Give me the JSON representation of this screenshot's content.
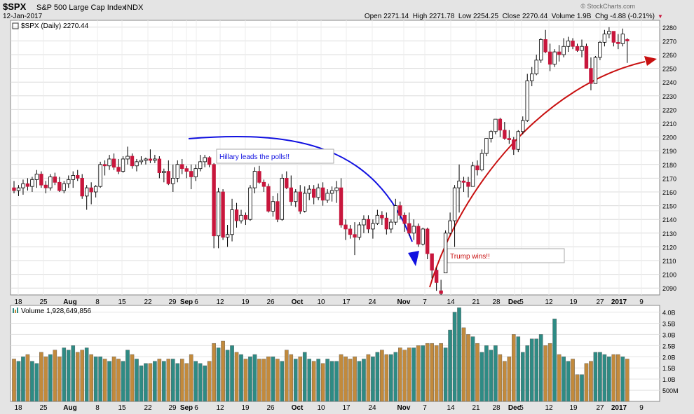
{
  "header": {
    "symbol": "$SPX",
    "name": "S&P 500 Large Cap Index",
    "exchange": "INDX",
    "date": "12-Jan-2017",
    "ohlc_line": "Open 2271.14  High 2271.78  Low 2254.25  Close 2270.44  Volume 1.9B  Chg -4.88 (-0.21%)",
    "chg_arrow": "▼",
    "copyright": "© StockCharts.com"
  },
  "price_panel": {
    "legend": "$SPX (Daily) 2270.44",
    "y_ticks": [
      2090,
      2100,
      2110,
      2120,
      2130,
      2140,
      2150,
      2160,
      2170,
      2180,
      2190,
      2200,
      2210,
      2220,
      2230,
      2240,
      2250,
      2260,
      2270,
      2280
    ]
  },
  "volume_panel": {
    "legend": "Volume 1,928,649,856",
    "y_ticks": [
      "500M",
      "1.0B",
      "1.5B",
      "2.0B",
      "2.5B",
      "3.0B",
      "3.5B",
      "4.0B"
    ]
  },
  "x_labels": [
    "18",
    "25",
    "Aug",
    "8",
    "15",
    "22",
    "29",
    "Sep",
    "6",
    "12",
    "19",
    "26",
    "Oct",
    "10",
    "17",
    "24",
    "Nov",
    "7",
    "14",
    "21",
    "28",
    "Dec",
    "5",
    "12",
    "19",
    "27",
    "2017",
    "9"
  ],
  "annotations": {
    "hillary": "Hillary leads the polls!!",
    "trump": "Trump wins!!"
  },
  "colors": {
    "up": "#ffffff",
    "down": "#c8163c",
    "volume_up": "#2e8b84",
    "volume_down": "#c28a3c",
    "blue_arrow": "#1010e0",
    "red_arrow": "#c81010",
    "plot_bg": "#ffffff",
    "page_bg": "#e4e4e4"
  },
  "chart_data": {
    "type": "candlestick",
    "title": "$SPX S&P 500 Large Cap Index",
    "x_range": [
      "2016-07-14",
      "2017-01-12"
    ],
    "ylim": [
      2085,
      2285
    ],
    "volume_ylim_billions": [
      0,
      4.3
    ],
    "candles": [
      {
        "o": 2163,
        "h": 2168,
        "l": 2159,
        "c": 2161,
        "v": 1.9
      },
      {
        "o": 2161,
        "h": 2165,
        "l": 2157,
        "c": 2163,
        "v": 1.8
      },
      {
        "o": 2163,
        "h": 2169,
        "l": 2158,
        "c": 2166,
        "v": 2.0
      },
      {
        "o": 2166,
        "h": 2170,
        "l": 2161,
        "c": 2164,
        "v": 2.1
      },
      {
        "o": 2164,
        "h": 2171,
        "l": 2160,
        "c": 2169,
        "v": 1.8
      },
      {
        "o": 2169,
        "h": 2176,
        "l": 2163,
        "c": 2173,
        "v": 1.7
      },
      {
        "o": 2173,
        "h": 2175,
        "l": 2163,
        "c": 2165,
        "v": 2.2
      },
      {
        "o": 2165,
        "h": 2168,
        "l": 2159,
        "c": 2163,
        "v": 2.0
      },
      {
        "o": 2163,
        "h": 2173,
        "l": 2161,
        "c": 2171,
        "v": 2.1
      },
      {
        "o": 2171,
        "h": 2174,
        "l": 2165,
        "c": 2167,
        "v": 2.3
      },
      {
        "o": 2167,
        "h": 2171,
        "l": 2160,
        "c": 2161,
        "v": 2.0
      },
      {
        "o": 2161,
        "h": 2168,
        "l": 2159,
        "c": 2166,
        "v": 2.4
      },
      {
        "o": 2166,
        "h": 2172,
        "l": 2163,
        "c": 2169,
        "v": 2.3
      },
      {
        "o": 2169,
        "h": 2175,
        "l": 2163,
        "c": 2172,
        "v": 2.5
      },
      {
        "o": 2172,
        "h": 2176,
        "l": 2168,
        "c": 2170,
        "v": 2.2
      },
      {
        "o": 2170,
        "h": 2173,
        "l": 2155,
        "c": 2157,
        "v": 2.3
      },
      {
        "o": 2157,
        "h": 2165,
        "l": 2147,
        "c": 2163,
        "v": 2.4
      },
      {
        "o": 2163,
        "h": 2167,
        "l": 2151,
        "c": 2160,
        "v": 2.1
      },
      {
        "o": 2160,
        "h": 2165,
        "l": 2156,
        "c": 2164,
        "v": 2.0
      },
      {
        "o": 2164,
        "h": 2182,
        "l": 2163,
        "c": 2180,
        "v": 2.0
      },
      {
        "o": 2180,
        "h": 2183,
        "l": 2172,
        "c": 2179,
        "v": 1.9
      },
      {
        "o": 2179,
        "h": 2187,
        "l": 2176,
        "c": 2184,
        "v": 1.8
      },
      {
        "o": 2184,
        "h": 2188,
        "l": 2176,
        "c": 2178,
        "v": 2.0
      },
      {
        "o": 2178,
        "h": 2184,
        "l": 2173,
        "c": 2175,
        "v": 1.9
      },
      {
        "o": 2175,
        "h": 2186,
        "l": 2174,
        "c": 2184,
        "v": 1.8
      },
      {
        "o": 2184,
        "h": 2193,
        "l": 2180,
        "c": 2186,
        "v": 2.3
      },
      {
        "o": 2186,
        "h": 2188,
        "l": 2177,
        "c": 2179,
        "v": 2.1
      },
      {
        "o": 2179,
        "h": 2184,
        "l": 2175,
        "c": 2182,
        "v": 1.9
      },
      {
        "o": 2182,
        "h": 2186,
        "l": 2180,
        "c": 2183,
        "v": 1.6
      },
      {
        "o": 2183,
        "h": 2185,
        "l": 2180,
        "c": 2184,
        "v": 1.7
      },
      {
        "o": 2184,
        "h": 2191,
        "l": 2181,
        "c": 2183,
        "v": 1.7
      },
      {
        "o": 2183,
        "h": 2187,
        "l": 2181,
        "c": 2184,
        "v": 1.8
      },
      {
        "o": 2184,
        "h": 2186,
        "l": 2170,
        "c": 2174,
        "v": 1.9
      },
      {
        "o": 2174,
        "h": 2177,
        "l": 2167,
        "c": 2175,
        "v": 1.8
      },
      {
        "o": 2175,
        "h": 2183,
        "l": 2165,
        "c": 2166,
        "v": 1.9
      },
      {
        "o": 2166,
        "h": 2180,
        "l": 2160,
        "c": 2170,
        "v": 1.9
      },
      {
        "o": 2170,
        "h": 2183,
        "l": 2167,
        "c": 2180,
        "v": 1.7
      },
      {
        "o": 2180,
        "h": 2184,
        "l": 2173,
        "c": 2177,
        "v": 1.9
      },
      {
        "o": 2177,
        "h": 2179,
        "l": 2170,
        "c": 2175,
        "v": 1.7
      },
      {
        "o": 2175,
        "h": 2180,
        "l": 2162,
        "c": 2171,
        "v": 2.1
      },
      {
        "o": 2171,
        "h": 2180,
        "l": 2168,
        "c": 2177,
        "v": 1.8
      },
      {
        "o": 2177,
        "h": 2187,
        "l": 2175,
        "c": 2182,
        "v": 1.7
      },
      {
        "o": 2182,
        "h": 2187,
        "l": 2178,
        "c": 2185,
        "v": 1.6
      },
      {
        "o": 2185,
        "h": 2186,
        "l": 2178,
        "c": 2180,
        "v": 1.8
      },
      {
        "o": 2180,
        "h": 2181,
        "l": 2119,
        "c": 2128,
        "v": 2.6
      },
      {
        "o": 2128,
        "h": 2163,
        "l": 2119,
        "c": 2160,
        "v": 2.4
      },
      {
        "o": 2160,
        "h": 2162,
        "l": 2125,
        "c": 2127,
        "v": 2.7
      },
      {
        "o": 2127,
        "h": 2136,
        "l": 2120,
        "c": 2129,
        "v": 2.3
      },
      {
        "o": 2129,
        "h": 2155,
        "l": 2124,
        "c": 2147,
        "v": 2.5
      },
      {
        "o": 2147,
        "h": 2152,
        "l": 2134,
        "c": 2139,
        "v": 2.2
      },
      {
        "o": 2139,
        "h": 2147,
        "l": 2137,
        "c": 2143,
        "v": 2.1
      },
      {
        "o": 2143,
        "h": 2145,
        "l": 2136,
        "c": 2140,
        "v": 1.9
      },
      {
        "o": 2140,
        "h": 2165,
        "l": 2139,
        "c": 2163,
        "v": 2.0
      },
      {
        "o": 2163,
        "h": 2178,
        "l": 2159,
        "c": 2175,
        "v": 2.1
      },
      {
        "o": 2175,
        "h": 2179,
        "l": 2166,
        "c": 2167,
        "v": 1.9
      },
      {
        "o": 2167,
        "h": 2169,
        "l": 2160,
        "c": 2164,
        "v": 1.9
      },
      {
        "o": 2164,
        "h": 2166,
        "l": 2145,
        "c": 2146,
        "v": 2.0
      },
      {
        "o": 2146,
        "h": 2157,
        "l": 2142,
        "c": 2153,
        "v": 2.0
      },
      {
        "o": 2153,
        "h": 2159,
        "l": 2138,
        "c": 2140,
        "v": 1.9
      },
      {
        "o": 2140,
        "h": 2173,
        "l": 2139,
        "c": 2170,
        "v": 1.8
      },
      {
        "o": 2170,
        "h": 2175,
        "l": 2162,
        "c": 2163,
        "v": 2.3
      },
      {
        "o": 2163,
        "h": 2172,
        "l": 2150,
        "c": 2153,
        "v": 2.1
      },
      {
        "o": 2153,
        "h": 2162,
        "l": 2149,
        "c": 2160,
        "v": 1.9
      },
      {
        "o": 2160,
        "h": 2165,
        "l": 2144,
        "c": 2146,
        "v": 2.0
      },
      {
        "o": 2146,
        "h": 2164,
        "l": 2145,
        "c": 2159,
        "v": 2.2
      },
      {
        "o": 2159,
        "h": 2165,
        "l": 2154,
        "c": 2162,
        "v": 1.9
      },
      {
        "o": 2162,
        "h": 2165,
        "l": 2151,
        "c": 2156,
        "v": 1.8
      },
      {
        "o": 2156,
        "h": 2166,
        "l": 2154,
        "c": 2163,
        "v": 1.9
      },
      {
        "o": 2163,
        "h": 2167,
        "l": 2150,
        "c": 2154,
        "v": 1.7
      },
      {
        "o": 2154,
        "h": 2162,
        "l": 2152,
        "c": 2159,
        "v": 1.9
      },
      {
        "o": 2159,
        "h": 2164,
        "l": 2153,
        "c": 2161,
        "v": 1.8
      },
      {
        "o": 2161,
        "h": 2168,
        "l": 2152,
        "c": 2163,
        "v": 1.8
      },
      {
        "o": 2163,
        "h": 2170,
        "l": 2134,
        "c": 2136,
        "v": 2.1
      },
      {
        "o": 2136,
        "h": 2140,
        "l": 2125,
        "c": 2133,
        "v": 2.0
      },
      {
        "o": 2133,
        "h": 2136,
        "l": 2126,
        "c": 2129,
        "v": 1.9
      },
      {
        "o": 2129,
        "h": 2138,
        "l": 2114,
        "c": 2127,
        "v": 2.0
      },
      {
        "o": 2127,
        "h": 2138,
        "l": 2125,
        "c": 2136,
        "v": 1.8
      },
      {
        "o": 2136,
        "h": 2143,
        "l": 2130,
        "c": 2140,
        "v": 1.9
      },
      {
        "o": 2140,
        "h": 2143,
        "l": 2130,
        "c": 2133,
        "v": 2.1
      },
      {
        "o": 2133,
        "h": 2140,
        "l": 2126,
        "c": 2137,
        "v": 2.0
      },
      {
        "o": 2137,
        "h": 2147,
        "l": 2136,
        "c": 2143,
        "v": 2.2
      },
      {
        "o": 2143,
        "h": 2146,
        "l": 2136,
        "c": 2141,
        "v": 2.3
      },
      {
        "o": 2141,
        "h": 2145,
        "l": 2129,
        "c": 2133,
        "v": 2.1
      },
      {
        "o": 2133,
        "h": 2140,
        "l": 2130,
        "c": 2138,
        "v": 2.1
      },
      {
        "o": 2138,
        "h": 2155,
        "l": 2136,
        "c": 2150,
        "v": 2.2
      },
      {
        "o": 2150,
        "h": 2153,
        "l": 2140,
        "c": 2143,
        "v": 2.4
      },
      {
        "o": 2143,
        "h": 2145,
        "l": 2131,
        "c": 2137,
        "v": 2.3
      },
      {
        "o": 2137,
        "h": 2145,
        "l": 2128,
        "c": 2130,
        "v": 2.4
      },
      {
        "o": 2130,
        "h": 2140,
        "l": 2125,
        "c": 2135,
        "v": 2.4
      },
      {
        "o": 2135,
        "h": 2137,
        "l": 2120,
        "c": 2122,
        "v": 2.5
      },
      {
        "o": 2122,
        "h": 2134,
        "l": 2121,
        "c": 2133,
        "v": 2.5
      },
      {
        "o": 2133,
        "h": 2134,
        "l": 2111,
        "c": 2115,
        "v": 2.6
      },
      {
        "o": 2115,
        "h": 2115,
        "l": 2097,
        "c": 2103,
        "v": 2.6
      },
      {
        "o": 2103,
        "h": 2105,
        "l": 2088,
        "c": 2094,
        "v": 2.5
      },
      {
        "o": 2088,
        "h": 2096,
        "l": 2085,
        "c": 2086,
        "v": 2.6
      },
      {
        "o": 2101,
        "h": 2132,
        "l": 2101,
        "c": 2130,
        "v": 2.4
      },
      {
        "o": 2130,
        "h": 2145,
        "l": 2129,
        "c": 2139,
        "v": 3.2
      },
      {
        "o": 2139,
        "h": 2165,
        "l": 2120,
        "c": 2163,
        "v": 4.0
      },
      {
        "o": 2163,
        "h": 2180,
        "l": 2145,
        "c": 2168,
        "v": 4.2
      },
      {
        "o": 2168,
        "h": 2171,
        "l": 2160,
        "c": 2167,
        "v": 3.3
      },
      {
        "o": 2167,
        "h": 2171,
        "l": 2156,
        "c": 2164,
        "v": 3.0
      },
      {
        "o": 2164,
        "h": 2182,
        "l": 2164,
        "c": 2179,
        "v": 2.9
      },
      {
        "o": 2179,
        "h": 2183,
        "l": 2172,
        "c": 2176,
        "v": 2.6
      },
      {
        "o": 2176,
        "h": 2191,
        "l": 2175,
        "c": 2188,
        "v": 2.2
      },
      {
        "o": 2188,
        "h": 2199,
        "l": 2186,
        "c": 2199,
        "v": 2.5
      },
      {
        "o": 2199,
        "h": 2205,
        "l": 2196,
        "c": 2204,
        "v": 2.3
      },
      {
        "o": 2204,
        "h": 2213,
        "l": 2202,
        "c": 2213,
        "v": 2.5
      },
      {
        "o": 2213,
        "h": 2214,
        "l": 2200,
        "c": 2205,
        "v": 2.1
      },
      {
        "o": 2205,
        "h": 2211,
        "l": 2198,
        "c": 2199,
        "v": 1.8
      },
      {
        "o": 2199,
        "h": 2205,
        "l": 2195,
        "c": 2198,
        "v": 2.0
      },
      {
        "o": 2198,
        "h": 2200,
        "l": 2187,
        "c": 2191,
        "v": 3.0
      },
      {
        "o": 2191,
        "h": 2205,
        "l": 2189,
        "c": 2204,
        "v": 2.9
      },
      {
        "o": 2204,
        "h": 2215,
        "l": 2202,
        "c": 2212,
        "v": 2.2
      },
      {
        "o": 2212,
        "h": 2246,
        "l": 2211,
        "c": 2241,
        "v": 2.5
      },
      {
        "o": 2241,
        "h": 2251,
        "l": 2237,
        "c": 2246,
        "v": 2.8
      },
      {
        "o": 2246,
        "h": 2260,
        "l": 2245,
        "c": 2256,
        "v": 2.8
      },
      {
        "o": 2256,
        "h": 2272,
        "l": 2254,
        "c": 2271,
        "v": 3.0
      },
      {
        "o": 2271,
        "h": 2278,
        "l": 2261,
        "c": 2262,
        "v": 2.5
      },
      {
        "o": 2262,
        "h": 2268,
        "l": 2248,
        "c": 2253,
        "v": 2.6
      },
      {
        "o": 2253,
        "h": 2264,
        "l": 2251,
        "c": 2262,
        "v": 3.7
      },
      {
        "o": 2262,
        "h": 2267,
        "l": 2255,
        "c": 2260,
        "v": 2.1
      },
      {
        "o": 2260,
        "h": 2272,
        "l": 2258,
        "c": 2266,
        "v": 2.0
      },
      {
        "o": 2266,
        "h": 2273,
        "l": 2262,
        "c": 2270,
        "v": 1.8
      },
      {
        "o": 2270,
        "h": 2272,
        "l": 2264,
        "c": 2266,
        "v": 1.9
      },
      {
        "o": 2266,
        "h": 2268,
        "l": 2262,
        "c": 2263,
        "v": 1.2
      },
      {
        "o": 2263,
        "h": 2271,
        "l": 2258,
        "c": 2266,
        "v": 1.2
      },
      {
        "o": 2266,
        "h": 2268,
        "l": 2250,
        "c": 2250,
        "v": 1.7
      },
      {
        "o": 2250,
        "h": 2258,
        "l": 2234,
        "c": 2239,
        "v": 1.8
      },
      {
        "o": 2239,
        "h": 2259,
        "l": 2239,
        "c": 2258,
        "v": 2.2
      },
      {
        "o": 2258,
        "h": 2270,
        "l": 2256,
        "c": 2269,
        "v": 2.2
      },
      {
        "o": 2269,
        "h": 2278,
        "l": 2266,
        "c": 2275,
        "v": 2.1
      },
      {
        "o": 2275,
        "h": 2280,
        "l": 2272,
        "c": 2277,
        "v": 2.0
      },
      {
        "o": 2277,
        "h": 2277,
        "l": 2266,
        "c": 2269,
        "v": 2.1
      },
      {
        "o": 2269,
        "h": 2275,
        "l": 2264,
        "c": 2268,
        "v": 2.1
      },
      {
        "o": 2268,
        "h": 2279,
        "l": 2266,
        "c": 2275,
        "v": 2.0
      },
      {
        "o": 2271,
        "h": 2272,
        "l": 2254,
        "c": 2270,
        "v": 1.9
      }
    ]
  }
}
